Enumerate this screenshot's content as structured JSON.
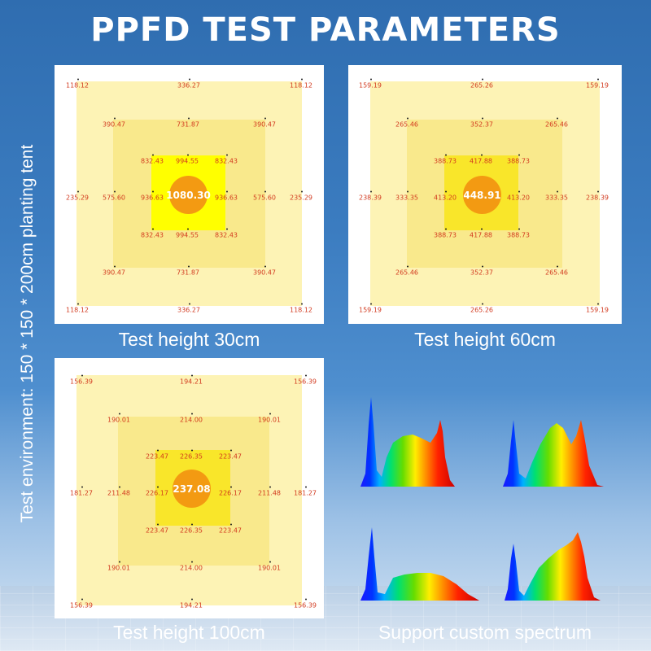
{
  "title": "PPFD TEST PARAMETERS",
  "side_text": "Test environment: 150 * 150 * 200cm planting tent",
  "panels": [
    {
      "caption": "Test height 30cm",
      "center": "1080.30",
      "outer": [
        "118.12",
        "336.27",
        "118.12",
        "235.29",
        "235.29",
        "118.12",
        "336.27",
        "118.12"
      ],
      "mid": [
        "390.47",
        "731.87",
        "390.47",
        "575.60",
        "575.60",
        "390.47",
        "731.87",
        "390.47"
      ],
      "inner": [
        "832.43",
        "994.55",
        "832.43",
        "936.63",
        "936.63",
        "832.43",
        "994.55",
        "832.43"
      ]
    },
    {
      "caption": "Test height 60cm",
      "center": "448.91",
      "outer": [
        "159.19",
        "265.26",
        "159.19",
        "238.39",
        "238.39",
        "159.19",
        "265.26",
        "159.19"
      ],
      "mid": [
        "265.46",
        "352.37",
        "265.46",
        "333.35",
        "333.35",
        "265.46",
        "352.37",
        "265.46"
      ],
      "inner": [
        "388.73",
        "417.88",
        "388.73",
        "413.20",
        "413.20",
        "388.73",
        "417.88",
        "388.73"
      ]
    },
    {
      "caption": "Test height 100cm",
      "center": "237.08",
      "outer": [
        "156.39",
        "194.21",
        "156.39",
        "181.27",
        "181.27",
        "156.39",
        "194.21",
        "156.39"
      ],
      "mid": [
        "190.01",
        "214.00",
        "190.01",
        "211.48",
        "211.48",
        "190.01",
        "214.00",
        "190.01"
      ],
      "inner": [
        "223.47",
        "226.35",
        "223.47",
        "226.17",
        "226.17",
        "223.47",
        "226.35",
        "223.47"
      ]
    }
  ],
  "spectrum_caption": "Support custom spectrum",
  "colors": {
    "title": "#ffffff",
    "label_red": "#d23a1f",
    "center_orange": "#f39a12",
    "zone_outer": "#fdf3b5",
    "zone_inner": "#ffff00"
  }
}
